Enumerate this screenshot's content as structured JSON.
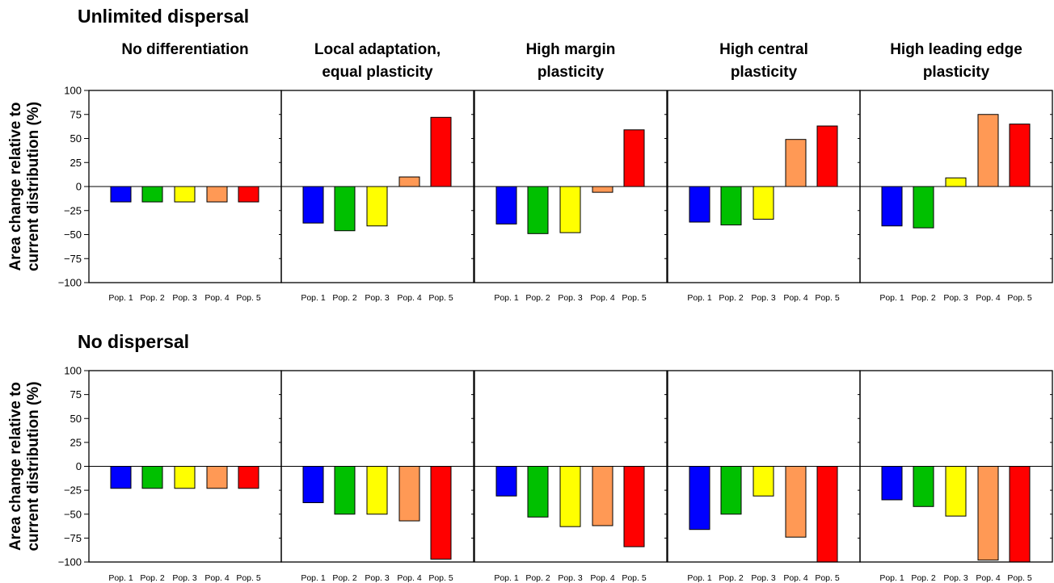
{
  "figure": {
    "sections": [
      {
        "title": "Unlimited dispersal",
        "ylabel_lines": [
          "Area change relative to",
          "current distribution (%)"
        ]
      },
      {
        "title": "No dispersal",
        "ylabel_lines": [
          "Area change relative to",
          "current distribution (%)"
        ]
      }
    ],
    "panel_titles": [
      [
        "No differentiation"
      ],
      [
        "Local adaptation,",
        "equal plasticity"
      ],
      [
        "High margin",
        "plasticity"
      ],
      [
        "High central",
        "plasticity"
      ],
      [
        "High leading edge",
        "plasticity"
      ]
    ]
  },
  "chart_data": {
    "type": "bar",
    "categories": [
      "Pop. 1",
      "Pop. 2",
      "Pop. 3",
      "Pop. 4",
      "Pop. 5"
    ],
    "colors": [
      "#0000ff",
      "#00c000",
      "#ffff00",
      "#ff9955",
      "#ff0000"
    ],
    "ylim": [
      -100,
      100
    ],
    "yticks": [
      100,
      75,
      50,
      25,
      0,
      -25,
      -50,
      -75,
      -100
    ],
    "ytick_labels": [
      "100",
      "75",
      "50",
      "25",
      "0",
      "−25",
      "−50",
      "−75",
      "−100"
    ],
    "panels": [
      [
        {
          "title": "No differentiation",
          "values": [
            -16,
            -16,
            -16,
            -16,
            -16
          ]
        },
        {
          "title": "Local adaptation, equal plasticity",
          "values": [
            -38,
            -46,
            -41,
            10,
            72
          ]
        },
        {
          "title": "High margin plasticity",
          "values": [
            -39,
            -49,
            -48,
            -6,
            59
          ]
        },
        {
          "title": "High central plasticity",
          "values": [
            -37,
            -40,
            -34,
            49,
            63
          ]
        },
        {
          "title": "High leading edge plasticity",
          "values": [
            -41,
            -43,
            9,
            75,
            65
          ]
        }
      ],
      [
        {
          "title": "No differentiation",
          "values": [
            -23,
            -23,
            -23,
            -23,
            -23
          ]
        },
        {
          "title": "Local adaptation, equal plasticity",
          "values": [
            -38,
            -50,
            -50,
            -57,
            -97
          ]
        },
        {
          "title": "High margin plasticity",
          "values": [
            -31,
            -53,
            -63,
            -62,
            -84
          ]
        },
        {
          "title": "High central plasticity",
          "values": [
            -66,
            -50,
            -31,
            -74,
            -100
          ]
        },
        {
          "title": "High leading edge plasticity",
          "values": [
            -35,
            -42,
            -52,
            -98,
            -100
          ]
        }
      ]
    ]
  }
}
